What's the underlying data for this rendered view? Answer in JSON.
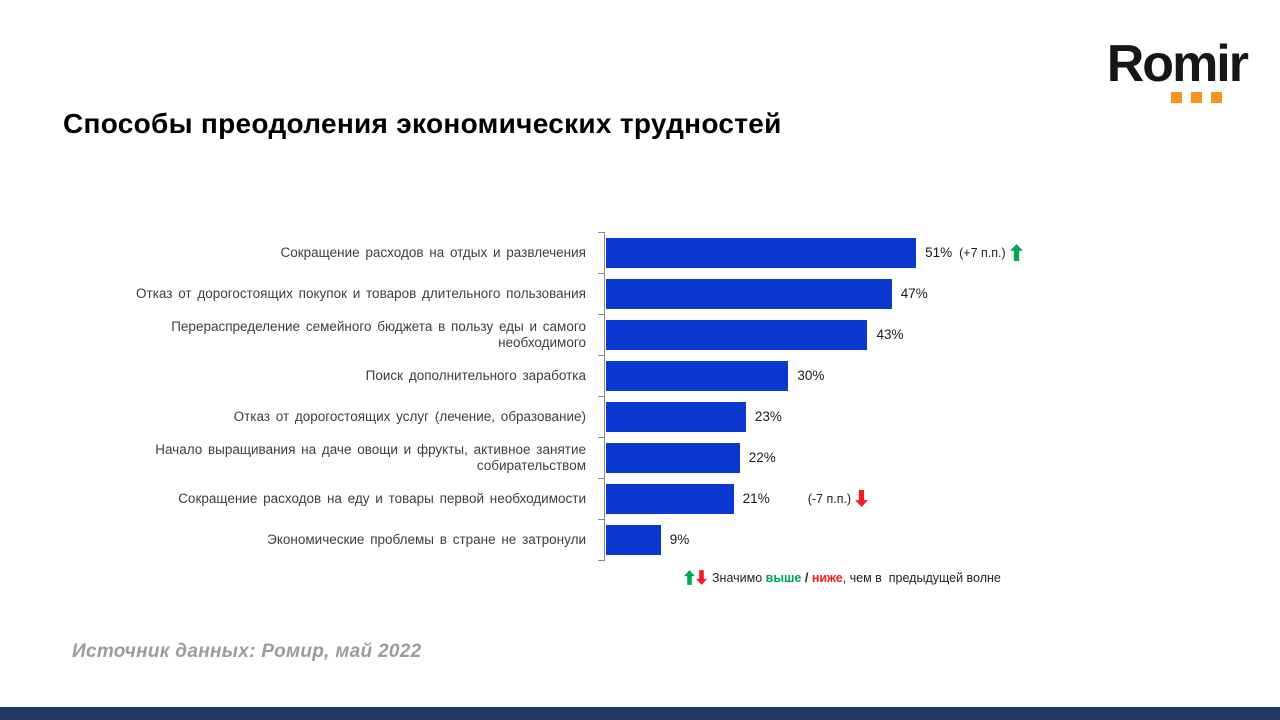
{
  "logo": {
    "text": "Romir",
    "dot_color": "#F7941D"
  },
  "title": "Способы преодоления экономических трудностей",
  "chart_data": {
    "type": "bar",
    "orientation": "horizontal",
    "title": "Способы преодоления экономических трудностей",
    "bar_color": "#0B38CE",
    "value_suffix": "%",
    "xlim": [
      0,
      55
    ],
    "grid": false,
    "categories": [
      "Сокращение расходов на отдых и развлечения",
      "Отказ от дорогостоящих покупок и товаров длительного пользования",
      "Перераспределение семейного бюджета в пользу еды и самого необходимого",
      "Поиск дополнительного заработка",
      "Отказ от дорогостоящих услуг (лечение, образование)",
      "Начало выращивания на даче овощи и фрукты, активное занятие собирательством",
      "Сокращение расходов на еду и товары первой необходимости",
      "Экономические проблемы в стране не затронули"
    ],
    "values": [
      51,
      47,
      43,
      30,
      23,
      22,
      21,
      9
    ],
    "annotations": [
      {
        "index": 0,
        "text": "(+7 п.п.)",
        "direction": "up",
        "color": "#00A651"
      },
      {
        "index": 6,
        "text": "(-7 п.п.)",
        "direction": "down",
        "color": "#EE1C25"
      }
    ]
  },
  "legend": {
    "prefix": "Значимо ",
    "higher": "выше",
    "separator": " / ",
    "lower": "ниже",
    "suffix": ", чем в  предыдущей волне",
    "higher_color": "#00A651",
    "lower_color": "#EE1C25"
  },
  "source": "Источник данных: Ромир, май 2022",
  "footer_color": "#1F3864"
}
